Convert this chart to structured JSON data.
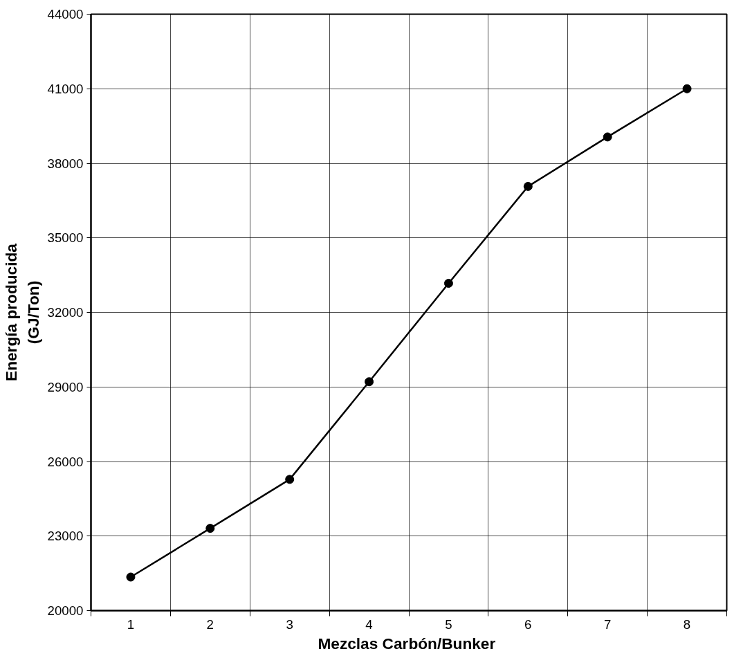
{
  "chart_data": {
    "type": "line",
    "xlabel": "Mezclas  Carbón/Bunker",
    "ylabel": "Energía producida\n(GJ/Ton)",
    "categories": [
      "1",
      "2",
      "3",
      "4",
      "5",
      "6",
      "7",
      "8"
    ],
    "series": [
      {
        "color": "#000000",
        "values": [
          21350,
          23310,
          25280,
          29210,
          33170,
          37070,
          39060,
          41000
        ]
      }
    ],
    "ylim": [
      20000,
      44000
    ],
    "yticks": [
      20000,
      23000,
      26000,
      29000,
      32000,
      35000,
      38000,
      41000,
      44000
    ],
    "grid": true,
    "marker": "circle",
    "line_style": "solid"
  }
}
